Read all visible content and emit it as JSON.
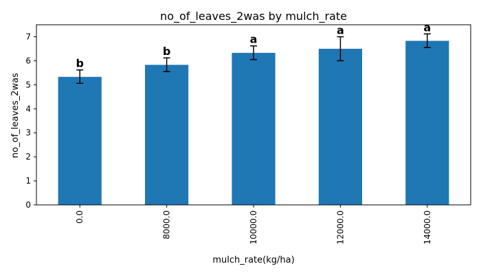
{
  "chart_data": {
    "type": "bar",
    "title": "no_of_leaves_2was by mulch_rate",
    "xlabel": "mulch_rate(kg/ha)",
    "ylabel": "no_of_leaves_2was",
    "categories": [
      "0.0",
      "8000.0",
      "10000.0",
      "12000.0",
      "14000.0"
    ],
    "values": [
      5.33,
      5.83,
      6.33,
      6.5,
      6.83
    ],
    "error_lower": [
      5.06,
      5.55,
      6.05,
      6.0,
      6.55
    ],
    "error_upper": [
      5.62,
      6.12,
      6.62,
      7.0,
      7.12
    ],
    "significance_letters": [
      "b",
      "b",
      "a",
      "a",
      "a"
    ],
    "ylim": [
      0,
      7.5
    ],
    "yticks": [
      "0",
      "1",
      "2",
      "3",
      "4",
      "5",
      "6",
      "7"
    ],
    "grid": false,
    "bar_color": "#1f77b4"
  }
}
